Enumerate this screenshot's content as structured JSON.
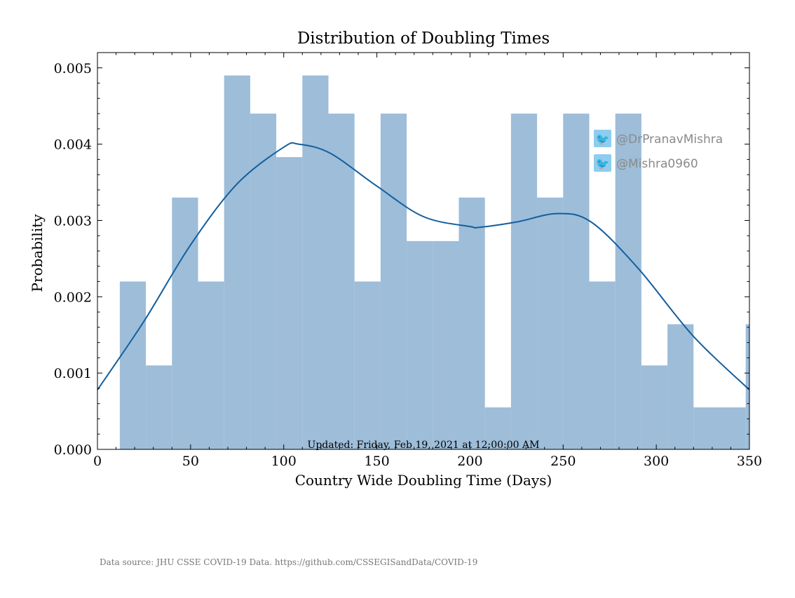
{
  "chart_data": {
    "type": "bar",
    "title": "Distribution of Doubling Times",
    "xlabel": "Country Wide Doubling Time (Days)",
    "ylabel": "Probability",
    "xlim": [
      0,
      350
    ],
    "ylim": [
      0,
      0.0052
    ],
    "xticks": [
      "0",
      "50",
      "100",
      "150",
      "200",
      "250",
      "300",
      "350"
    ],
    "yticks": [
      "0.000",
      "0.001",
      "0.002",
      "0.003",
      "0.004",
      "0.005"
    ],
    "bin_edges": [
      12,
      26,
      40,
      54,
      68,
      82,
      96,
      110,
      124,
      138,
      152,
      166,
      180,
      194,
      208,
      222,
      236,
      250,
      264,
      278,
      292,
      306,
      320,
      334,
      348,
      362
    ],
    "values": [
      0.0022,
      0.0011,
      0.0033,
      0.0022,
      0.0049,
      0.0044,
      0.00383,
      0.0049,
      0.0044,
      0.0022,
      0.0044,
      0.00273,
      0.00273,
      0.0033,
      0.00055,
      0.0044,
      0.0033,
      0.0044,
      0.0022,
      0.0044,
      0.0011,
      0.00164,
      0.00055,
      0.00055,
      0.00164
    ],
    "kde": {
      "x": [
        0,
        25,
        50,
        75,
        100,
        108,
        125,
        150,
        175,
        200,
        205,
        225,
        247,
        265,
        290,
        320,
        350
      ],
      "y": [
        0.00078,
        0.00168,
        0.00268,
        0.00348,
        0.00396,
        0.004,
        0.00388,
        0.00345,
        0.00305,
        0.00292,
        0.00291,
        0.00298,
        0.00309,
        0.00298,
        0.00238,
        0.00148,
        0.00078
      ]
    },
    "grid": false,
    "bar_color": "#9dbdd9",
    "line_color": "#135f9e"
  },
  "annotation": {
    "updated": "Updated: Friday, Feb 19, 2021 at 12:00:00 AM"
  },
  "footer": {
    "source": "Data source: JHU CSSE COVID-19 Data. https://github.com/CSSEGISandData/COVID-19"
  },
  "social": {
    "handles": [
      "@DrPranavMishra",
      "@Mishra0960"
    ],
    "icon": "twitter-bird-icon",
    "icon_color": "#8ccdf0"
  }
}
